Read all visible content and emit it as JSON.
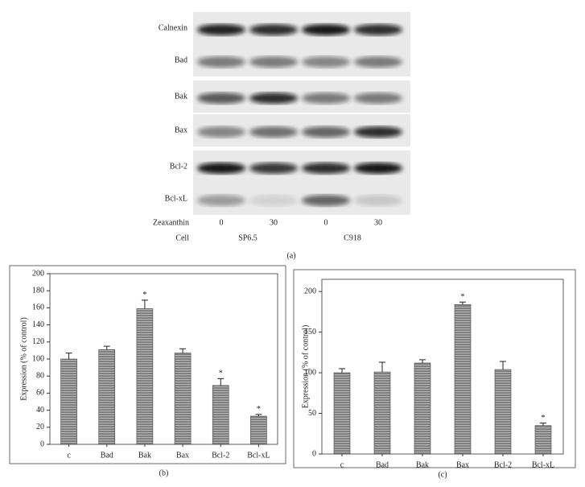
{
  "blot": {
    "rows": [
      "Calnexin",
      "Bad",
      "Bak",
      "Bax",
      "Bcl-2",
      "Bcl-xL"
    ],
    "treatment_label": "Zeaxanthin",
    "doses": [
      0,
      30,
      0,
      30
    ],
    "cell_label": "Cell",
    "cells": [
      "SP6.5",
      "C918"
    ],
    "caption": "(a)"
  },
  "chart_data": [
    {
      "type": "bar",
      "caption": "(b)",
      "y_label": "Expression (% of control)",
      "categories": [
        "c",
        "Bad",
        "Bak",
        "Bax",
        "Bcl-2",
        "Bcl-xL"
      ],
      "values": [
        100,
        111,
        159,
        107,
        69,
        33
      ],
      "errors": [
        7,
        4,
        10,
        5,
        8,
        2
      ],
      "significant": [
        false,
        false,
        true,
        false,
        true,
        true
      ],
      "significance_marker": "*",
      "color": "#7a7a7a",
      "stripe_color": "#b5b5b5",
      "ylim": [
        0,
        200
      ],
      "yticks": [
        0,
        20,
        40,
        60,
        80,
        100,
        120,
        140,
        160,
        180,
        200
      ]
    },
    {
      "type": "bar",
      "caption": "(c)",
      "y_label": "Expression (% of control)",
      "categories": [
        "c",
        "Bad",
        "Bak",
        "Bax",
        "Bcl-2",
        "Bcl-xL"
      ],
      "values": [
        100,
        101,
        112,
        184,
        104,
        35
      ],
      "errors": [
        5,
        12,
        4,
        3,
        10,
        3
      ],
      "significant": [
        false,
        false,
        false,
        true,
        false,
        true
      ],
      "significance_marker": "*",
      "color": "#7a7a7a",
      "stripe_color": "#b5b5b5",
      "ylim": [
        0,
        215
      ],
      "yticks": [
        0,
        50,
        100,
        150,
        200
      ]
    }
  ]
}
